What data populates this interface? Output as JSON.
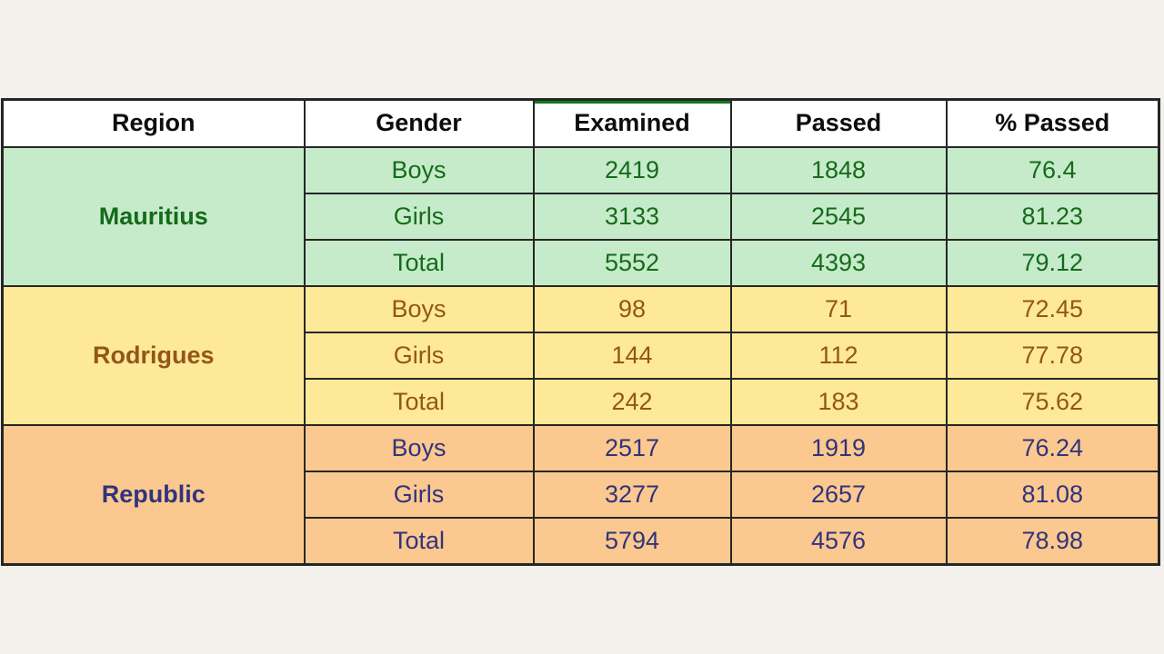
{
  "colors": {
    "page_bg": "#f2f1eb",
    "border_color": "#262626",
    "header_bg": "#ffffff",
    "header_text": "#0d0d0d",
    "examined_accent_line": "#157a1e",
    "mauritius_bg": "#c6ebcb",
    "mauritius_text": "#156b1a",
    "rodrigues_bg": "#fde998",
    "rodrigues_text": "#935618",
    "republic_bg": "#fbc98f",
    "republic_text": "#32337d"
  },
  "chart_data": {
    "type": "table",
    "columns": [
      "Region",
      "Gender",
      "Examined",
      "Passed",
      "% Passed"
    ],
    "sections": [
      {
        "region": "Mauritius",
        "rows": [
          {
            "gender": "Boys",
            "examined": 2419,
            "passed": 1848,
            "pct_passed": 76.4
          },
          {
            "gender": "Girls",
            "examined": 3133,
            "passed": 2545,
            "pct_passed": 81.23
          },
          {
            "gender": "Total",
            "examined": 5552,
            "passed": 4393,
            "pct_passed": 79.12
          }
        ]
      },
      {
        "region": "Rodrigues",
        "rows": [
          {
            "gender": "Boys",
            "examined": 98,
            "passed": 71,
            "pct_passed": 72.45
          },
          {
            "gender": "Girls",
            "examined": 144,
            "passed": 112,
            "pct_passed": 77.78
          },
          {
            "gender": "Total",
            "examined": 242,
            "passed": 183,
            "pct_passed": 75.62
          }
        ]
      },
      {
        "region": "Republic",
        "rows": [
          {
            "gender": "Boys",
            "examined": 2517,
            "passed": 1919,
            "pct_passed": 76.24
          },
          {
            "gender": "Girls",
            "examined": 3277,
            "passed": 2657,
            "pct_passed": 81.08
          },
          {
            "gender": "Total",
            "examined": 5794,
            "passed": 4576,
            "pct_passed": 78.98
          }
        ]
      }
    ]
  }
}
